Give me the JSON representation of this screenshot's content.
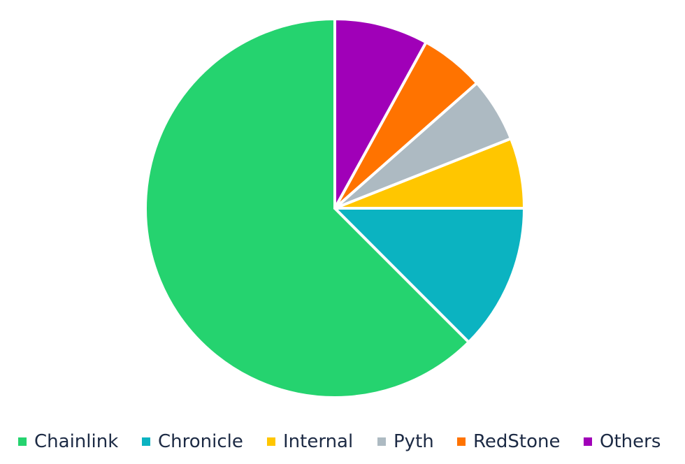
{
  "chart_data": {
    "type": "pie",
    "title": "",
    "legend_position": "bottom",
    "slices": [
      {
        "label": "Chainlink",
        "value": 62.5,
        "color": "#25d36f"
      },
      {
        "label": "Chronicle",
        "value": 12.5,
        "color": "#0bb3c1"
      },
      {
        "label": "Internal",
        "value": 6.0,
        "color": "#ffc600"
      },
      {
        "label": "Pyth",
        "value": 5.5,
        "color": "#adbac2"
      },
      {
        "label": "RedStone",
        "value": 5.5,
        "color": "#ff7300"
      },
      {
        "label": "Others",
        "value": 8.0,
        "color": "#a000b8"
      }
    ]
  }
}
